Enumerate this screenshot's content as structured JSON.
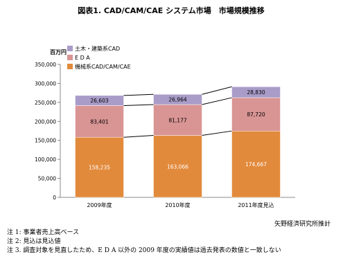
{
  "chart_data": {
    "type": "bar",
    "stacked": true,
    "title": "図表1. CAD/CAM/CAE システム市場　市場規模推移",
    "ylabel": "百万円",
    "ylim": [
      0,
      350000
    ],
    "yticks": [
      "0",
      "50,000",
      "100,000",
      "150,000",
      "200,000",
      "250,000",
      "300,000",
      "350,000"
    ],
    "ytick_values": [
      0,
      50000,
      100000,
      150000,
      200000,
      250000,
      300000,
      350000
    ],
    "categories": [
      "2009年度",
      "2010年度",
      "2011年度見込"
    ],
    "series": [
      {
        "name": "機械系CAD/CAM/CAE",
        "values": [
          158235,
          163066,
          174667
        ],
        "labels": [
          "158,235",
          "163,066",
          "174,667"
        ],
        "color": "#e28a3c"
      },
      {
        "name": "E D A",
        "values": [
          83401,
          81177,
          87720
        ],
        "labels": [
          "83,401",
          "81,177",
          "87,720"
        ],
        "color": "#d99494"
      },
      {
        "name": "土木・建築系CAD",
        "values": [
          26603,
          26964,
          28830
        ],
        "labels": [
          "26,603",
          "26,964",
          "28,830"
        ],
        "color": "#a99cc8"
      }
    ],
    "legend_position": "top-left",
    "grid": false,
    "connector_lines": true
  },
  "source": "矢野経済研究所推計",
  "notes": [
    "注 1: 事業者売上高ベース",
    "注 2: 見込は見込値",
    "注 3. 調査対象を見直したため、E D A 以外の 2009 年度の実績値は過去発表の数値と一致しない"
  ]
}
